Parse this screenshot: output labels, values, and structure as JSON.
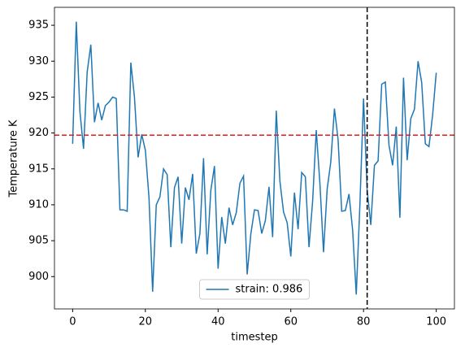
{
  "chart_data": {
    "type": "line",
    "xlabel": "timestep",
    "ylabel": "Temperature K",
    "x": [
      0,
      1,
      2,
      3,
      4,
      5,
      6,
      7,
      8,
      9,
      10,
      11,
      12,
      13,
      14,
      15,
      16,
      17,
      18,
      19,
      20,
      21,
      22,
      23,
      24,
      25,
      26,
      27,
      28,
      29,
      30,
      31,
      32,
      33,
      34,
      35,
      36,
      37,
      38,
      39,
      40,
      41,
      42,
      43,
      44,
      45,
      46,
      47,
      48,
      49,
      50,
      51,
      52,
      53,
      54,
      55,
      56,
      57,
      58,
      59,
      60,
      61,
      62,
      63,
      64,
      65,
      66,
      67,
      68,
      69,
      70,
      71,
      72,
      73,
      74,
      75,
      76,
      77,
      78,
      79,
      80,
      81,
      82,
      83,
      84,
      85,
      86,
      87,
      88,
      89,
      90,
      91,
      92,
      93,
      94,
      95,
      96,
      97,
      98,
      99,
      100
    ],
    "series": [
      {
        "name": "strain: 0.986",
        "color": "#1f77b4",
        "values": [
          918.5,
          935.5,
          923,
          917.8,
          928.5,
          932.3,
          921.5,
          924.2,
          921.8,
          923.8,
          924.3,
          925,
          924.8,
          909.3,
          909.3,
          909.1,
          929.8,
          925,
          916.6,
          919.8,
          917.6,
          911,
          897.9,
          910,
          911.1,
          915,
          914.2,
          904.1,
          912.4,
          913.9,
          904.6,
          912.4,
          910.7,
          914.3,
          903.2,
          906,
          916.5,
          903.1,
          912,
          915.4,
          901.1,
          908.3,
          904.6,
          909.6,
          907.2,
          908.9,
          913,
          914,
          900.3,
          905.9,
          909.3,
          909.2,
          906,
          907.8,
          912.5,
          905.5,
          923.1,
          913.3,
          909,
          907.5,
          902.8,
          911.7,
          906.6,
          914.5,
          913.9,
          904.1,
          910.5,
          920.4,
          913,
          903.4,
          912.2,
          916,
          923.4,
          919.1,
          909.1,
          909.2,
          911.5,
          906.5,
          897.5,
          910,
          924.8,
          912,
          907.2,
          915.5,
          916.1,
          926.8,
          927.1,
          918.3,
          915.5,
          920.9,
          908.2,
          927.7,
          916.2,
          922,
          923.3,
          930,
          927,
          918.5,
          918.1,
          922.5,
          928.4
        ]
      }
    ],
    "hlines": [
      {
        "value": 919.7,
        "color": "#e41a1c"
      }
    ],
    "vlines": [
      {
        "value": 81,
        "color": "#000000"
      }
    ],
    "xlim": [
      -5,
      105
    ],
    "ylim": [
      895.5,
      937.5
    ],
    "xticks": [
      0,
      20,
      40,
      60,
      80,
      100
    ],
    "yticks": [
      900,
      905,
      910,
      915,
      920,
      925,
      930,
      935
    ],
    "legend": "lower center",
    "grid": false
  }
}
